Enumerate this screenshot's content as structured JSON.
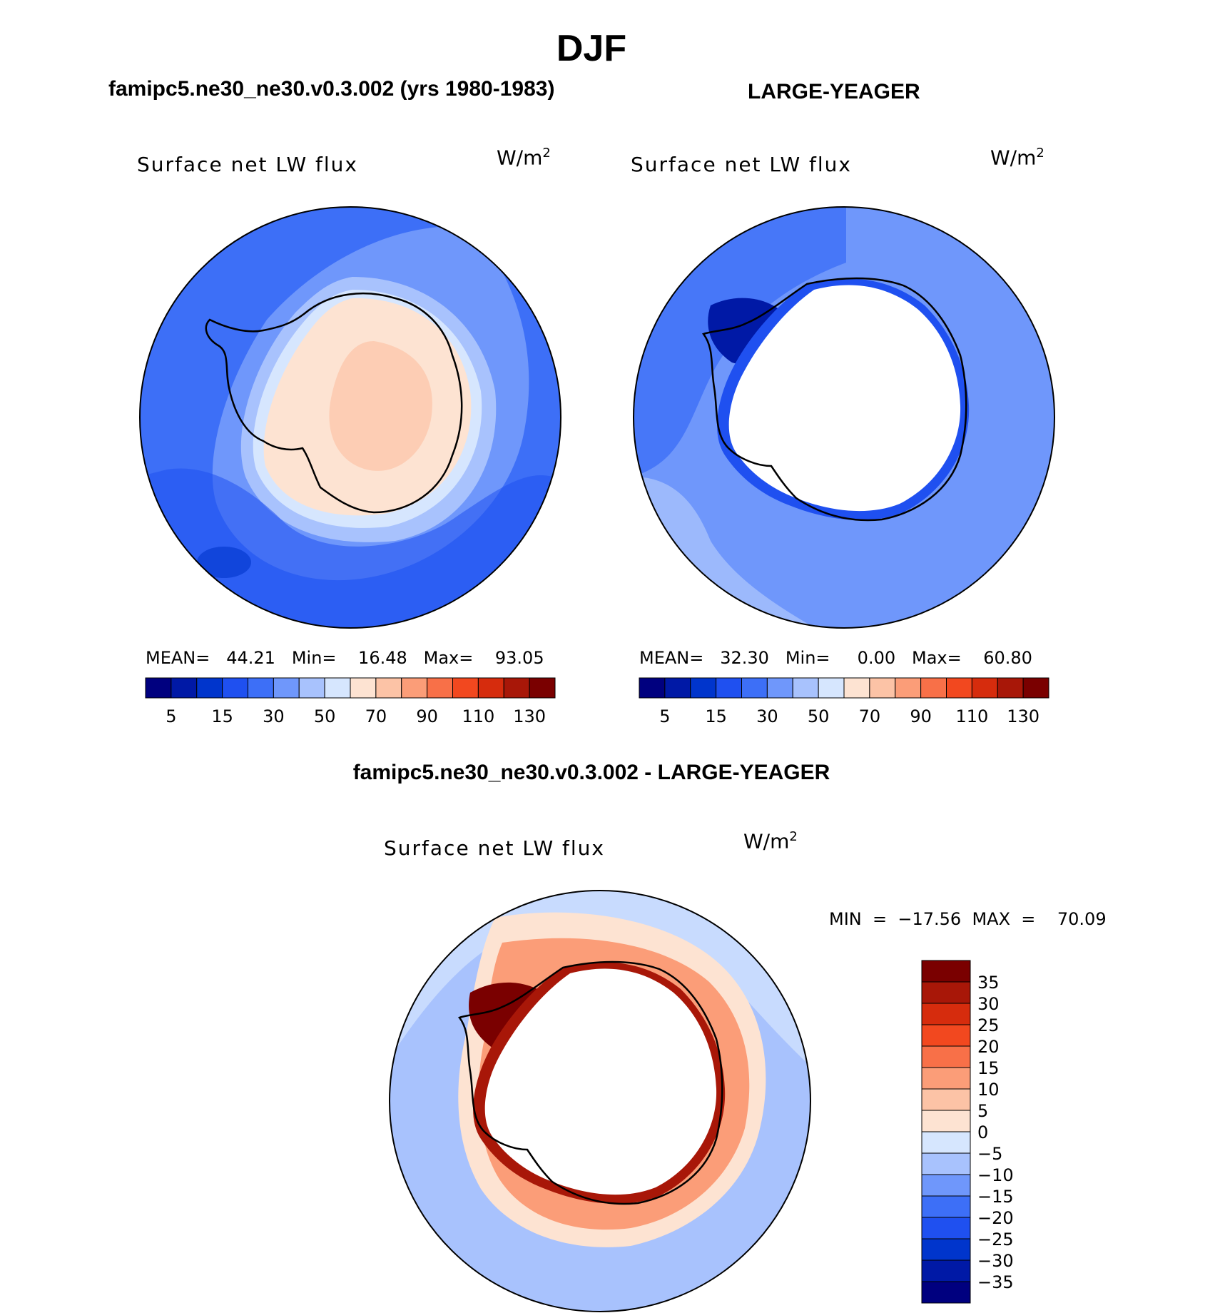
{
  "titles": {
    "main": "DJF",
    "left": "famipc5.ne30_ne30.v0.3.002 (yrs 1980-1983)",
    "right": "LARGE-YEAGER",
    "diff": "famipc5.ne30_ne30.v0.3.002 - LARGE-YEAGER"
  },
  "panels": {
    "left": {
      "variable": "Surface net LW flux",
      "units": "W/m",
      "units_sup": "2",
      "stats": "MEAN=   44.21   Min=    16.48   Max=    93.05"
    },
    "right": {
      "variable": "Surface net LW flux",
      "units": "W/m",
      "units_sup": "2",
      "stats": "MEAN=   32.30   Min=     0.00   Max=    60.80"
    },
    "diff": {
      "variable": "Surface net LW flux",
      "units": "W/m",
      "units_sup": "2",
      "stats": "MIN  =  −17.56  MAX  =    70.09"
    }
  },
  "colorbars": {
    "abs": {
      "colors": [
        "#00007f",
        "#0019a6",
        "#0035cc",
        "#1f50f0",
        "#3d6ff7",
        "#6f97fb",
        "#a8c2fd",
        "#d6e6fe",
        "#fde3d2",
        "#fcc3a6",
        "#fb9d78",
        "#f87048",
        "#f2481f",
        "#d62c0d",
        "#a81708",
        "#7a0000"
      ],
      "labels": [
        "5",
        "15",
        "30",
        "50",
        "70",
        "90",
        "110",
        "130"
      ]
    },
    "diff": {
      "colors": [
        "#00007f",
        "#0019a6",
        "#0035cc",
        "#1f50f0",
        "#3d6ff7",
        "#6f97fb",
        "#a8c2fd",
        "#d6e6fe",
        "#fde3d2",
        "#fcc3a6",
        "#fb9d78",
        "#f87048",
        "#f2481f",
        "#d62c0d",
        "#a81708",
        "#7a0000"
      ],
      "labels": [
        "35",
        "30",
        "25",
        "20",
        "15",
        "10",
        "5",
        "0",
        "−5",
        "−10",
        "−15",
        "−20",
        "−25",
        "−30",
        "−35"
      ]
    }
  },
  "map_colors": {
    "ocean_left": "#3d6ff7",
    "ocean_right": "#6f97fb",
    "ocean_diff": "#a8c2fd",
    "land_left": "#fcc3a6",
    "land_blank": "#ffffff",
    "coast": "#000000"
  }
}
